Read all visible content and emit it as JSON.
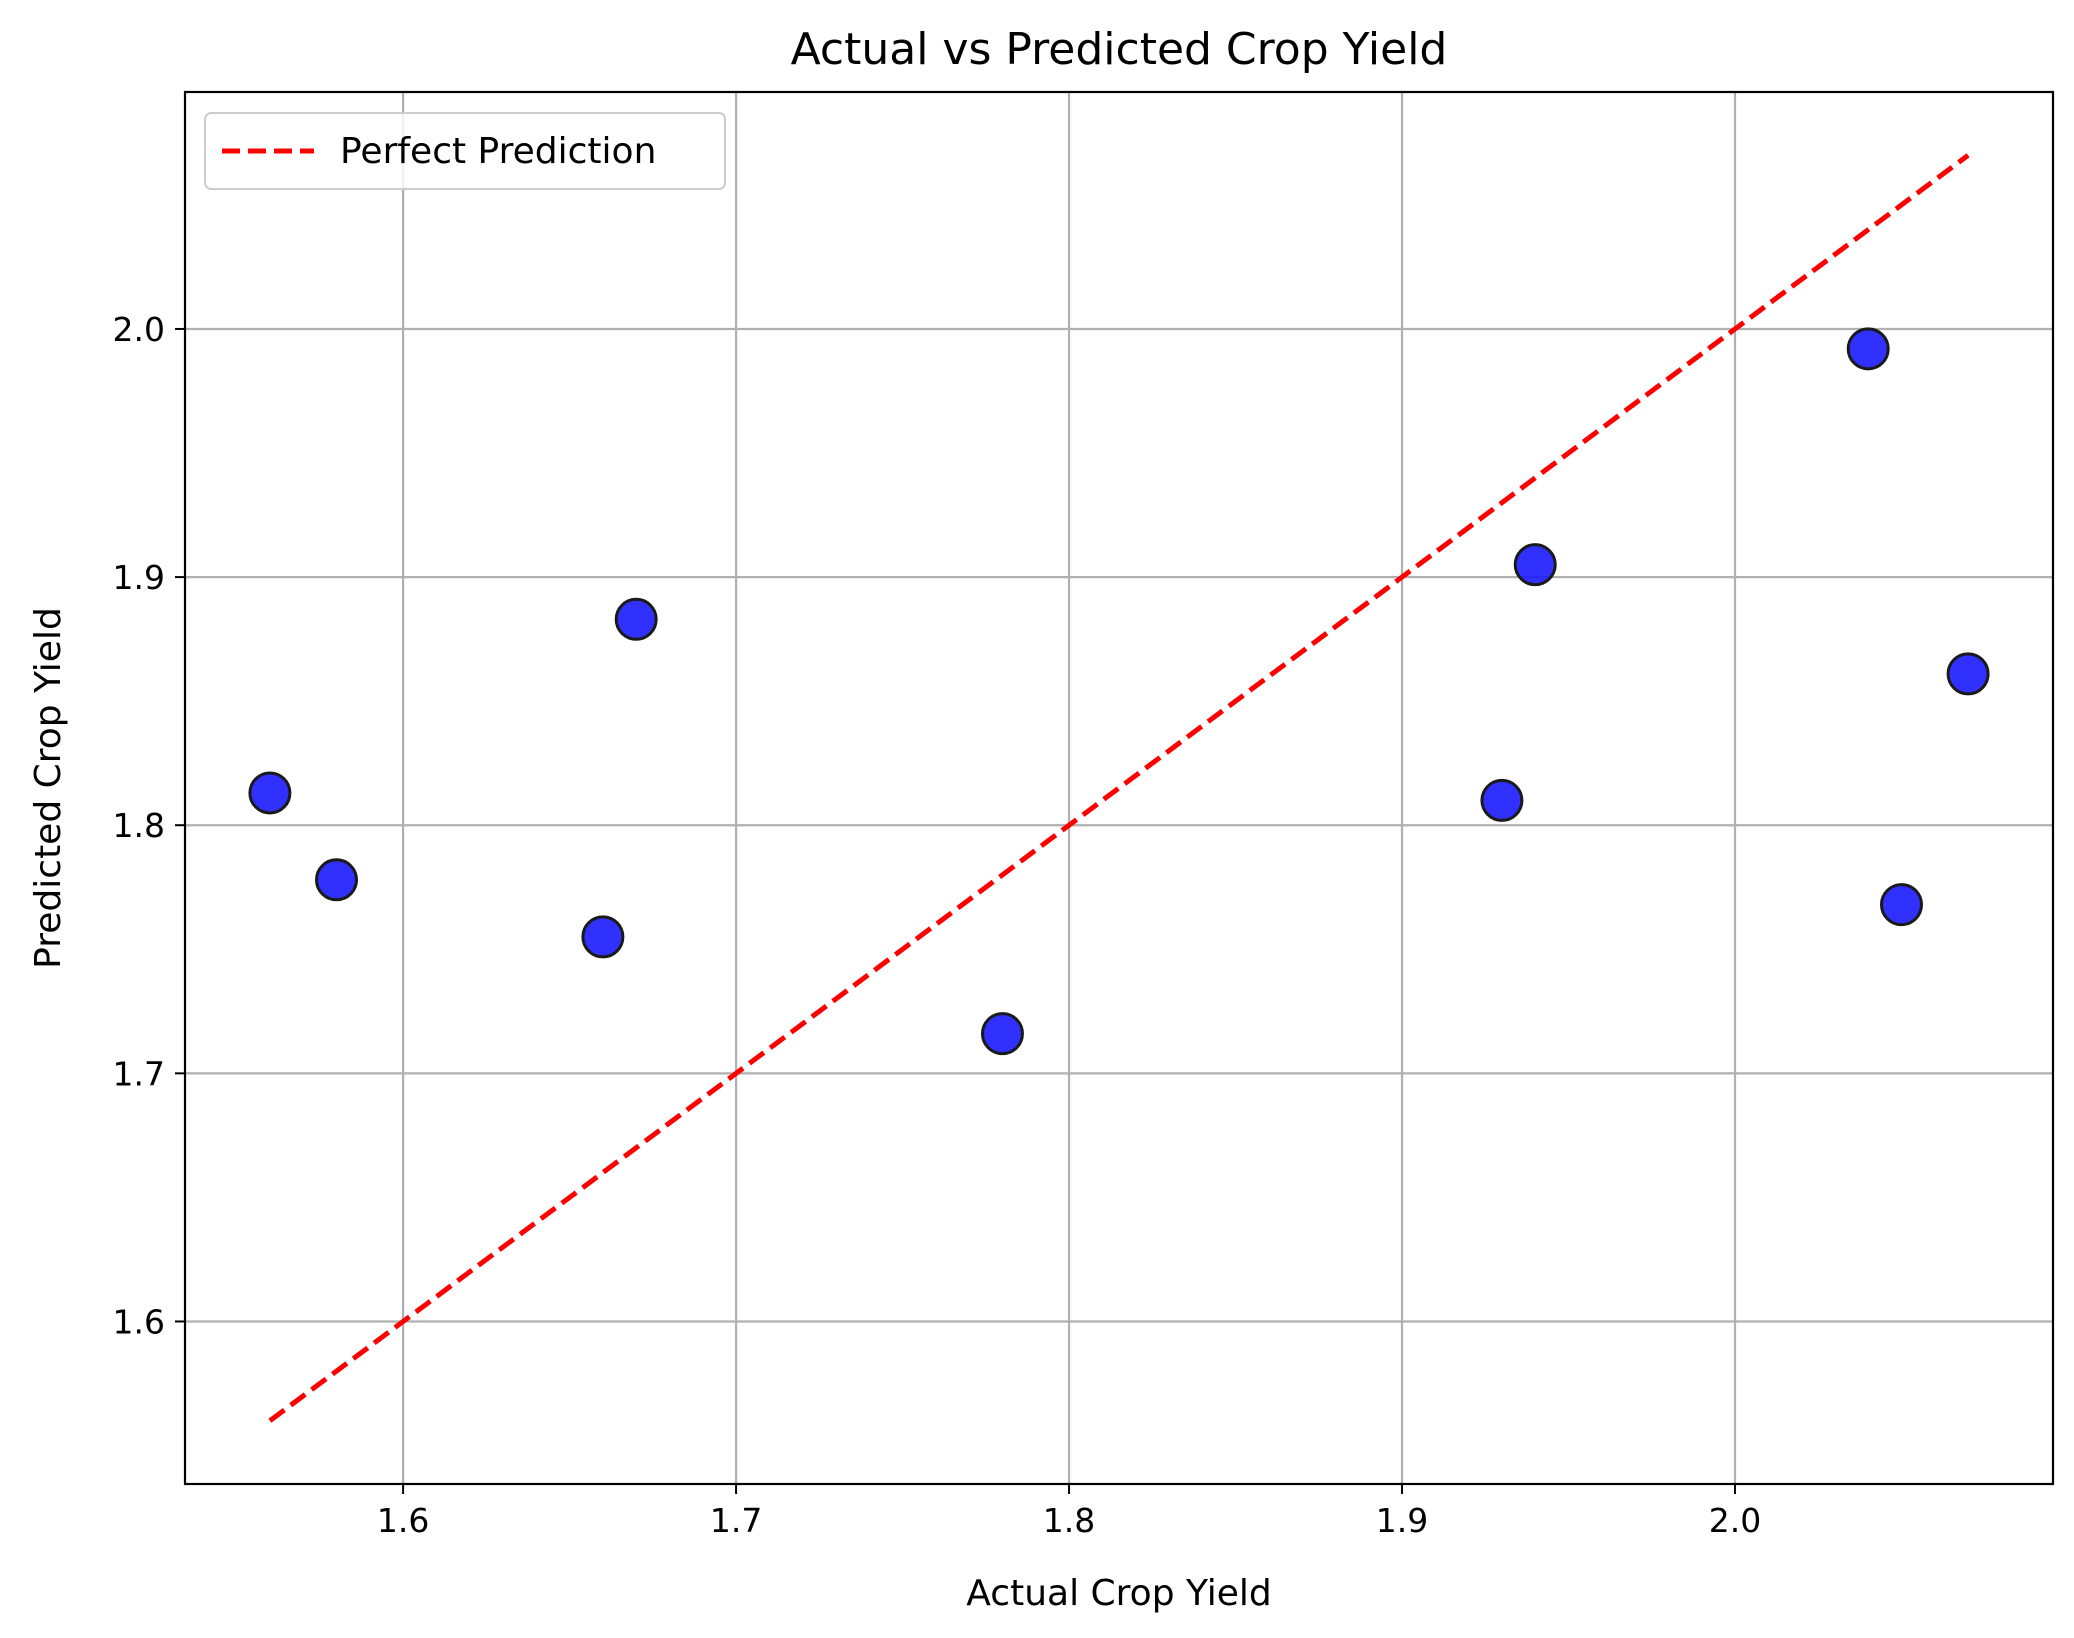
{
  "chart_data": {
    "type": "scatter",
    "title": "Actual vs Predicted Crop Yield",
    "xlabel": "Actual Crop Yield",
    "ylabel": "Predicted Crop Yield",
    "xlim": [
      1.5345,
      2.0955
    ],
    "ylim": [
      1.5345,
      2.0955
    ],
    "xticks": [
      1.6,
      1.7,
      1.8,
      1.9,
      2.0
    ],
    "yticks": [
      1.6,
      1.7,
      1.8,
      1.9,
      2.0
    ],
    "xtick_labels": [
      "1.6",
      "1.7",
      "1.8",
      "1.9",
      "2.0"
    ],
    "ytick_labels": [
      "1.6",
      "1.7",
      "1.8",
      "1.9",
      "2.0"
    ],
    "grid": true,
    "legend": {
      "placement": "upper-left",
      "entries": [
        {
          "label": "Perfect Prediction",
          "style": "dashed-line",
          "color": "#ff0000"
        }
      ]
    },
    "series": [
      {
        "type": "scatter",
        "color": "#1a1aff",
        "edge_color": "#1a1a1a",
        "points": [
          {
            "x": 1.56,
            "y": 1.813
          },
          {
            "x": 1.58,
            "y": 1.778
          },
          {
            "x": 1.66,
            "y": 1.755
          },
          {
            "x": 1.67,
            "y": 1.883
          },
          {
            "x": 1.78,
            "y": 1.716
          },
          {
            "x": 1.93,
            "y": 1.81
          },
          {
            "x": 1.94,
            "y": 1.905
          },
          {
            "x": 2.04,
            "y": 1.992
          },
          {
            "x": 2.05,
            "y": 1.768
          },
          {
            "x": 2.07,
            "y": 1.861
          }
        ]
      },
      {
        "name": "Perfect Prediction",
        "type": "line",
        "style": "dashed",
        "color": "#ff0000",
        "points": [
          {
            "x": 1.56,
            "y": 1.56
          },
          {
            "x": 2.07,
            "y": 2.07
          }
        ]
      }
    ]
  }
}
